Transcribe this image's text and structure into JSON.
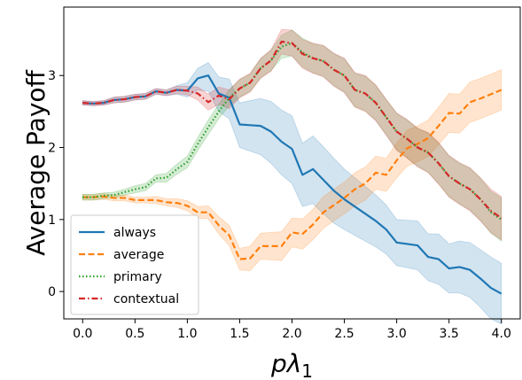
{
  "chart_data": {
    "type": "line",
    "xlabel": "pλ₁",
    "xlabel_base": "pλ",
    "xlabel_sub": "1",
    "ylabel": "Average Payoff",
    "xlim": [
      -0.18,
      4.18
    ],
    "ylim": [
      -0.38,
      3.95
    ],
    "xticks": [
      0.0,
      0.5,
      1.0,
      1.5,
      2.0,
      2.5,
      3.0,
      3.5,
      4.0
    ],
    "xtick_labels": [
      "0.0",
      "0.5",
      "1.0",
      "1.5",
      "2.0",
      "2.5",
      "3.0",
      "3.5",
      "4.0"
    ],
    "yticks": [
      0,
      1,
      2,
      3
    ],
    "ytick_labels": [
      "0",
      "1",
      "2",
      "3"
    ],
    "grid": false,
    "legend_position": "lower-left",
    "x": [
      0.0,
      0.1,
      0.2,
      0.3,
      0.4,
      0.5,
      0.6,
      0.7,
      0.8,
      0.9,
      1.0,
      1.1,
      1.2,
      1.3,
      1.4,
      1.5,
      1.6,
      1.7,
      1.8,
      1.9,
      2.0,
      2.1,
      2.2,
      2.3,
      2.4,
      2.5,
      2.6,
      2.7,
      2.8,
      2.9,
      3.0,
      3.1,
      3.2,
      3.3,
      3.4,
      3.5,
      3.6,
      3.7,
      3.8,
      3.9,
      4.0
    ],
    "series": [
      {
        "name": "always",
        "color": "#1f77b4",
        "dash": "solid",
        "values": [
          2.62,
          2.61,
          2.62,
          2.66,
          2.67,
          2.7,
          2.71,
          2.78,
          2.76,
          2.8,
          2.79,
          2.96,
          3.0,
          2.75,
          2.69,
          2.32,
          2.31,
          2.3,
          2.22,
          2.08,
          1.98,
          1.62,
          1.7,
          1.55,
          1.4,
          1.28,
          1.18,
          1.08,
          0.98,
          0.86,
          0.68,
          0.66,
          0.64,
          0.48,
          0.45,
          0.32,
          0.34,
          0.3,
          0.18,
          0.05,
          -0.03
        ],
        "lower": [
          2.59,
          2.58,
          2.59,
          2.62,
          2.63,
          2.66,
          2.67,
          2.74,
          2.72,
          2.74,
          2.7,
          2.8,
          2.78,
          2.5,
          2.4,
          2.0,
          1.95,
          1.9,
          1.78,
          1.62,
          1.5,
          1.18,
          1.22,
          1.08,
          0.95,
          0.86,
          0.78,
          0.7,
          0.62,
          0.52,
          0.36,
          0.33,
          0.3,
          0.15,
          0.1,
          -0.02,
          -0.02,
          -0.08,
          -0.22,
          -0.38,
          -0.45
        ],
        "upper": [
          2.65,
          2.64,
          2.65,
          2.7,
          2.71,
          2.74,
          2.75,
          2.82,
          2.8,
          2.86,
          2.9,
          3.1,
          3.18,
          2.98,
          2.95,
          2.62,
          2.65,
          2.68,
          2.64,
          2.52,
          2.44,
          2.06,
          2.16,
          2.01,
          1.85,
          1.7,
          1.58,
          1.46,
          1.34,
          1.2,
          1.0,
          0.99,
          0.98,
          0.8,
          0.8,
          0.66,
          0.7,
          0.68,
          0.58,
          0.48,
          0.39
        ]
      },
      {
        "name": "average",
        "color": "#ff7f0e",
        "dash": "dashed",
        "values": [
          1.31,
          1.31,
          1.32,
          1.3,
          1.3,
          1.27,
          1.27,
          1.27,
          1.24,
          1.23,
          1.19,
          1.1,
          1.1,
          0.92,
          0.78,
          0.45,
          0.46,
          0.63,
          0.63,
          0.63,
          0.82,
          0.8,
          0.93,
          1.1,
          1.2,
          1.3,
          1.42,
          1.5,
          1.65,
          1.62,
          1.82,
          1.99,
          2.05,
          2.13,
          2.3,
          2.48,
          2.47,
          2.63,
          2.68,
          2.74,
          2.8
        ],
        "lower": [
          1.27,
          1.27,
          1.28,
          1.26,
          1.26,
          1.23,
          1.23,
          1.22,
          1.19,
          1.17,
          1.12,
          1.02,
          1.01,
          0.8,
          0.64,
          0.3,
          0.29,
          0.45,
          0.44,
          0.43,
          0.62,
          0.59,
          0.72,
          0.88,
          0.98,
          1.08,
          1.19,
          1.27,
          1.42,
          1.39,
          1.58,
          1.74,
          1.8,
          1.88,
          2.04,
          2.21,
          2.2,
          2.35,
          2.4,
          2.46,
          2.52
        ],
        "upper": [
          1.35,
          1.35,
          1.36,
          1.34,
          1.34,
          1.31,
          1.31,
          1.32,
          1.29,
          1.29,
          1.26,
          1.18,
          1.19,
          1.04,
          0.92,
          0.6,
          0.63,
          0.81,
          0.82,
          0.83,
          1.02,
          1.01,
          1.14,
          1.32,
          1.42,
          1.52,
          1.65,
          1.73,
          1.88,
          1.85,
          2.06,
          2.24,
          2.3,
          2.38,
          2.56,
          2.75,
          2.74,
          2.91,
          2.96,
          3.02,
          3.08
        ]
      },
      {
        "name": "primary",
        "color": "#2ca02c",
        "dash": "dotted",
        "values": [
          1.31,
          1.31,
          1.33,
          1.34,
          1.38,
          1.42,
          1.45,
          1.57,
          1.58,
          1.7,
          1.8,
          2.05,
          2.28,
          2.5,
          2.69,
          2.82,
          2.9,
          3.1,
          3.21,
          3.4,
          3.45,
          3.32,
          3.24,
          3.2,
          3.08,
          3.0,
          2.8,
          2.75,
          2.62,
          2.42,
          2.22,
          2.12,
          2.0,
          1.93,
          1.78,
          1.6,
          1.5,
          1.42,
          1.28,
          1.1,
          1.0
        ],
        "lower": [
          1.27,
          1.27,
          1.29,
          1.3,
          1.34,
          1.37,
          1.4,
          1.52,
          1.52,
          1.63,
          1.72,
          1.96,
          2.18,
          2.4,
          2.58,
          2.7,
          2.78,
          2.97,
          3.07,
          3.24,
          3.27,
          3.12,
          3.04,
          2.99,
          2.86,
          2.77,
          2.57,
          2.51,
          2.38,
          2.18,
          1.97,
          1.86,
          1.74,
          1.66,
          1.5,
          1.32,
          1.22,
          1.13,
          0.99,
          0.81,
          0.7
        ],
        "upper": [
          1.35,
          1.35,
          1.37,
          1.38,
          1.42,
          1.47,
          1.5,
          1.62,
          1.64,
          1.77,
          1.88,
          2.14,
          2.38,
          2.6,
          2.8,
          2.94,
          3.02,
          3.23,
          3.35,
          3.56,
          3.63,
          3.52,
          3.44,
          3.41,
          3.3,
          3.23,
          3.03,
          2.99,
          2.86,
          2.66,
          2.47,
          2.38,
          2.26,
          2.2,
          2.06,
          1.88,
          1.78,
          1.71,
          1.57,
          1.39,
          1.3
        ]
      },
      {
        "name": "contextual",
        "color": "#d62728",
        "dash": "dashdot",
        "values": [
          2.62,
          2.61,
          2.62,
          2.66,
          2.67,
          2.7,
          2.71,
          2.78,
          2.76,
          2.8,
          2.79,
          2.75,
          2.63,
          2.72,
          2.67,
          2.82,
          2.9,
          3.1,
          3.21,
          3.47,
          3.45,
          3.3,
          3.24,
          3.2,
          3.08,
          3.0,
          2.8,
          2.75,
          2.62,
          2.42,
          2.22,
          2.12,
          2.0,
          1.93,
          1.78,
          1.6,
          1.5,
          1.42,
          1.28,
          1.12,
          1.02
        ],
        "lower": [
          2.59,
          2.58,
          2.59,
          2.62,
          2.63,
          2.66,
          2.67,
          2.74,
          2.72,
          2.75,
          2.73,
          2.66,
          2.52,
          2.6,
          2.54,
          2.69,
          2.77,
          2.96,
          3.06,
          3.3,
          3.27,
          3.1,
          3.03,
          2.98,
          2.85,
          2.76,
          2.56,
          2.5,
          2.37,
          2.17,
          1.96,
          1.85,
          1.73,
          1.65,
          1.49,
          1.31,
          1.21,
          1.12,
          0.98,
          0.82,
          0.72
        ],
        "upper": [
          2.65,
          2.64,
          2.65,
          2.7,
          2.71,
          2.74,
          2.75,
          2.82,
          2.8,
          2.85,
          2.85,
          2.84,
          2.74,
          2.84,
          2.8,
          2.95,
          3.03,
          3.24,
          3.36,
          3.64,
          3.63,
          3.5,
          3.45,
          3.42,
          3.31,
          3.24,
          3.04,
          3.0,
          2.87,
          2.67,
          2.48,
          2.39,
          2.27,
          2.21,
          2.07,
          1.89,
          1.79,
          1.72,
          1.58,
          1.42,
          1.32
        ]
      }
    ]
  }
}
